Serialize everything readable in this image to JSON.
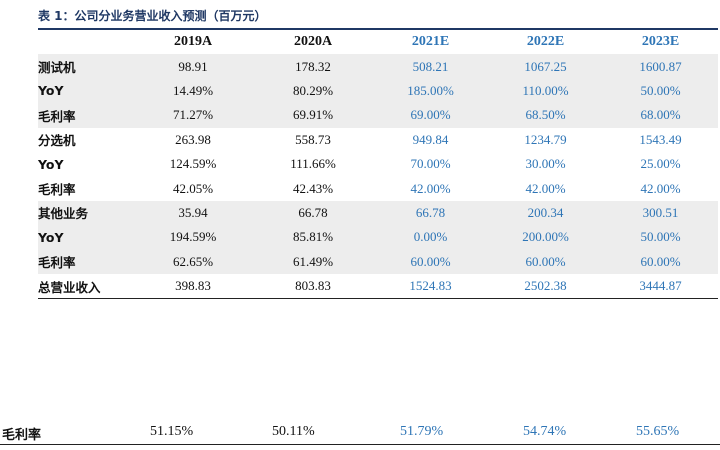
{
  "caption": "表 1：公司分业务营业收入预测（百万元）",
  "headers": [
    "",
    "2019A",
    "2020A",
    "2021E",
    "2022E",
    "2023E"
  ],
  "rows": [
    {
      "label": "测试机",
      "values": [
        "98.91",
        "178.32",
        "508.21",
        "1067.25",
        "1600.87"
      ]
    },
    {
      "label": "YoY",
      "values": [
        "14.49%",
        "80.29%",
        "185.00%",
        "110.00%",
        "50.00%"
      ]
    },
    {
      "label": "毛利率",
      "values": [
        "71.27%",
        "69.91%",
        "69.00%",
        "68.50%",
        "68.00%"
      ]
    },
    {
      "label": "分选机",
      "values": [
        "263.98",
        "558.73",
        "949.84",
        "1234.79",
        "1543.49"
      ]
    },
    {
      "label": "YoY",
      "values": [
        "124.59%",
        "111.66%",
        "70.00%",
        "30.00%",
        "25.00%"
      ]
    },
    {
      "label": "毛利率",
      "values": [
        "42.05%",
        "42.43%",
        "42.00%",
        "42.00%",
        "42.00%"
      ]
    },
    {
      "label": "其他业务",
      "values": [
        "35.94",
        "66.78",
        "66.78",
        "200.34",
        "300.51"
      ]
    },
    {
      "label": "YoY",
      "values": [
        "194.59%",
        "85.81%",
        "0.00%",
        "200.00%",
        "50.00%"
      ]
    },
    {
      "label": "毛利率",
      "values": [
        "62.65%",
        "61.49%",
        "60.00%",
        "60.00%",
        "60.00%"
      ]
    },
    {
      "label": "总营业收入",
      "values": [
        "398.83",
        "803.83",
        "1524.83",
        "2502.38",
        "3444.87"
      ]
    }
  ],
  "bottom_row": {
    "label": "毛利率",
    "values": [
      "51.15%",
      "50.11%",
      "51.79%",
      "54.74%",
      "55.65%"
    ]
  }
}
